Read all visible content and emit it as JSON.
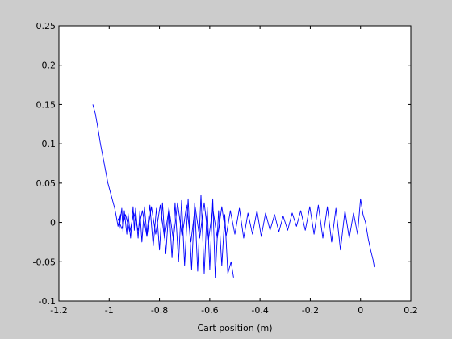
{
  "chart_data": {
    "type": "line",
    "title": "",
    "xlabel": "Cart position (m)",
    "ylabel": "",
    "xlim": [
      -1.2,
      0.2
    ],
    "ylim": [
      -0.1,
      0.25
    ],
    "xticks": [
      -1.2,
      -1,
      -0.8,
      -0.6,
      -0.4,
      -0.2,
      0,
      0.2
    ],
    "yticks": [
      -0.1,
      -0.05,
      0,
      0.05,
      0.1,
      0.15,
      0.2,
      0.25
    ],
    "xtick_labels": [
      "-1.2",
      "-1",
      "-0.8",
      "-0.6",
      "-0.4",
      "-0.2",
      "0",
      "0.2"
    ],
    "ytick_labels": [
      "-0.1",
      "-0.05",
      "0",
      "0.05",
      "0.1",
      "0.15",
      "0.2",
      "0.25"
    ],
    "grid": false,
    "legend": "none",
    "line_color": "#0000ff",
    "background_color": "#ffffff",
    "figure_color": "#cccccc",
    "series": [
      {
        "x": [
          -1.065,
          -1.055,
          -1.045,
          -1.035,
          -1.02,
          -1.005,
          -0.99,
          -0.978,
          -0.972,
          -0.965,
          -0.955,
          -0.96,
          -0.95,
          -0.945,
          -0.94,
          -0.93,
          -0.925,
          -0.915,
          -0.905,
          -0.9,
          -0.895,
          -0.885,
          -0.878,
          -0.87,
          -0.86,
          -0.85,
          -0.838,
          -0.825,
          -0.812,
          -0.8,
          -0.788,
          -0.775,
          -0.762,
          -0.75,
          -0.738,
          -0.724,
          -0.712,
          -0.7,
          -0.686,
          -0.672,
          -0.66,
          -0.648,
          -0.635,
          -0.622,
          -0.61,
          -0.6,
          -0.588,
          -0.578,
          -0.565,
          -0.552,
          -0.54,
          -0.528,
          -0.515,
          -0.505
        ],
        "y": [
          0.15,
          0.138,
          0.12,
          0.1,
          0.075,
          0.05,
          0.032,
          0.018,
          0.008,
          -0.005,
          0.01,
          -0.008,
          0.018,
          -0.012,
          0.015,
          -0.015,
          0.012,
          -0.02,
          0.02,
          -0.01,
          0.018,
          -0.02,
          0.015,
          -0.025,
          0.02,
          -0.015,
          0.022,
          -0.03,
          0.018,
          -0.035,
          0.025,
          -0.04,
          0.02,
          -0.045,
          0.025,
          -0.05,
          0.028,
          -0.055,
          0.03,
          -0.06,
          0.025,
          -0.062,
          0.035,
          -0.065,
          0.02,
          -0.06,
          0.03,
          -0.07,
          0.015,
          -0.055,
          0.01,
          -0.065,
          -0.05,
          -0.07
        ]
      },
      {
        "x": [
          -0.965,
          -0.95,
          -0.935,
          -0.918,
          -0.902,
          -0.885,
          -0.868,
          -0.85,
          -0.832,
          -0.815,
          -0.797,
          -0.78,
          -0.762,
          -0.745,
          -0.728,
          -0.71,
          -0.692,
          -0.675,
          -0.658,
          -0.64,
          -0.622,
          -0.605,
          -0.588,
          -0.57,
          -0.552,
          -0.535,
          -0.518,
          -0.5,
          -0.482,
          -0.465,
          -0.448,
          -0.43,
          -0.412,
          -0.395,
          -0.378,
          -0.36,
          -0.342,
          -0.325,
          -0.308,
          -0.29,
          -0.272,
          -0.255,
          -0.238,
          -0.22,
          -0.202,
          -0.185,
          -0.168,
          -0.15,
          -0.132,
          -0.115,
          -0.098,
          -0.08,
          -0.062,
          -0.045,
          -0.028,
          -0.012,
          0.0,
          0.01,
          0.02,
          0.03,
          0.04,
          0.05,
          0.055
        ],
        "y": [
          0.005,
          -0.008,
          0.01,
          -0.012,
          0.012,
          -0.01,
          0.015,
          -0.018,
          0.02,
          -0.015,
          0.022,
          -0.02,
          0.018,
          -0.022,
          0.025,
          -0.018,
          0.022,
          -0.025,
          0.02,
          -0.02,
          0.025,
          -0.022,
          0.018,
          -0.02,
          0.02,
          -0.018,
          0.015,
          -0.015,
          0.018,
          -0.02,
          0.012,
          -0.015,
          0.015,
          -0.018,
          0.012,
          -0.01,
          0.01,
          -0.012,
          0.008,
          -0.01,
          0.012,
          -0.005,
          0.015,
          -0.01,
          0.02,
          -0.015,
          0.022,
          -0.02,
          0.02,
          -0.025,
          0.018,
          -0.035,
          0.015,
          -0.02,
          0.012,
          -0.015,
          0.03,
          0.01,
          0.0,
          -0.02,
          -0.035,
          -0.048,
          -0.057
        ]
      }
    ]
  }
}
